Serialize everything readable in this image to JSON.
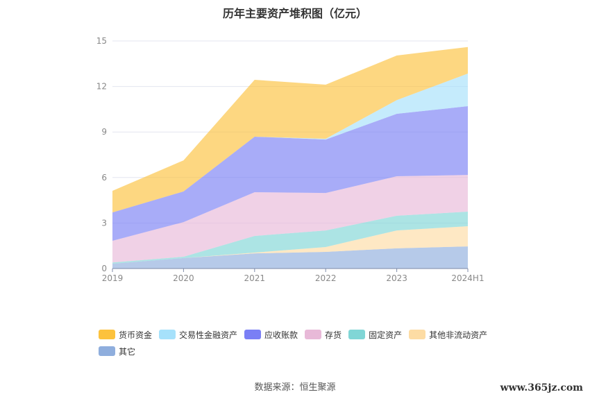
{
  "chart_data": {
    "type": "area",
    "stacked": true,
    "title": "历年主要资产堆积图（亿元）",
    "categories": [
      "2019",
      "2020",
      "2021",
      "2022",
      "2023",
      "2024H1"
    ],
    "ylim": [
      0,
      15
    ],
    "yticks": [
      "0",
      "3",
      "6",
      "9",
      "12",
      "15"
    ],
    "grid": true,
    "legend_position": "bottom",
    "series": [
      {
        "name": "其它",
        "color": "#8faedd",
        "values": [
          0.32,
          0.69,
          1.0,
          1.1,
          1.33,
          1.46
        ]
      },
      {
        "name": "其他非流动资产",
        "color": "#fddca4",
        "values": [
          0,
          0,
          0.05,
          0.32,
          1.18,
          1.33
        ]
      },
      {
        "name": "固定资产",
        "color": "#80d6d6",
        "values": [
          0.08,
          0.09,
          1.1,
          1.09,
          0.97,
          0.96
        ]
      },
      {
        "name": "存货",
        "color": "#e8b9d8",
        "values": [
          1.43,
          2.28,
          2.88,
          2.47,
          2.6,
          2.42
        ]
      },
      {
        "name": "应收账款",
        "color": "#7a7ff5",
        "values": [
          1.87,
          2.02,
          3.66,
          3.52,
          4.12,
          4.53
        ]
      },
      {
        "name": "交易性金融资产",
        "color": "#a6e1fb",
        "values": [
          0,
          0,
          0,
          0.05,
          0.9,
          2.15
        ]
      },
      {
        "name": "货币资金",
        "color": "#fcc23d",
        "values": [
          1.42,
          2.05,
          3.75,
          3.57,
          2.94,
          1.75
        ]
      }
    ],
    "legend_order": [
      6,
      5,
      4,
      3,
      2,
      1,
      0
    ]
  },
  "source": "数据来源：恒生聚源",
  "watermark": "www.365jz.com"
}
